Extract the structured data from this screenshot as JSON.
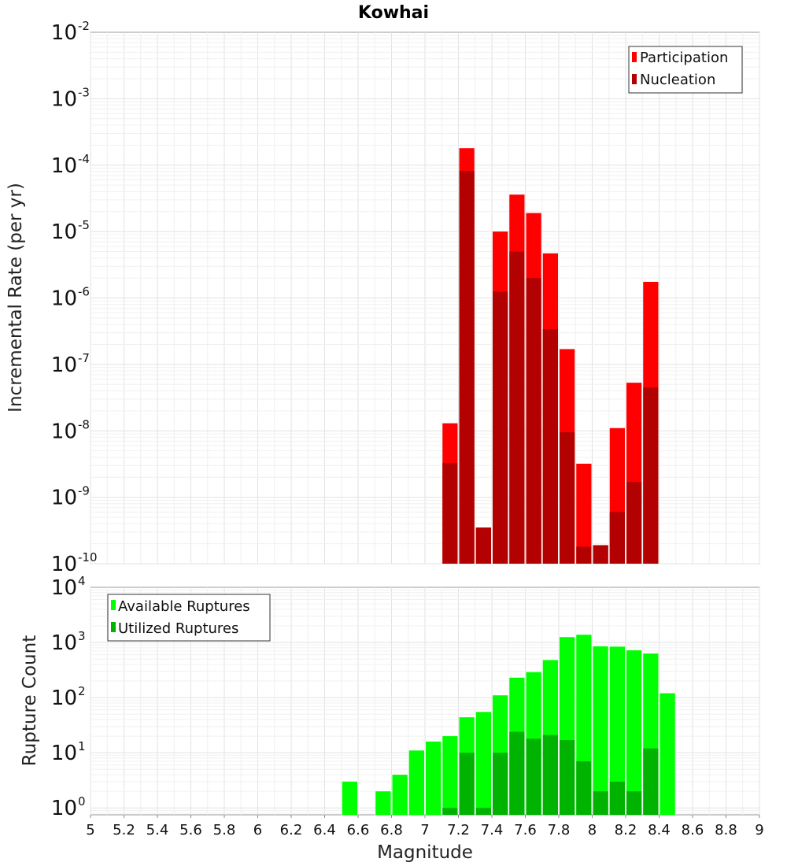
{
  "chart_data": [
    {
      "type": "bar",
      "title": "Kowhai",
      "xlabel": "Magnitude",
      "ylabel": "Incremental Rate (per yr)",
      "yscale": "log",
      "ylim": [
        1e-10,
        0.01
      ],
      "xlim": [
        5,
        9
      ],
      "ytick_bases": [
        "10",
        "10",
        "10",
        "10",
        "10",
        "10",
        "10",
        "10",
        "10"
      ],
      "ytick_exponents": [
        "-10",
        "-9",
        "-8",
        "-7",
        "-6",
        "-5",
        "-4",
        "-3",
        "-2"
      ],
      "bin_width": 0.1,
      "grid": true,
      "legend_position": "top-right",
      "series": [
        {
          "name": "Participation",
          "color": "#ff0000",
          "points": [
            [
              7.15,
              1.3e-08
            ],
            [
              7.25,
              0.00018
            ],
            [
              7.35,
              3.5e-10
            ],
            [
              7.45,
              1e-05
            ],
            [
              7.55,
              3.6e-05
            ],
            [
              7.65,
              1.9e-05
            ],
            [
              7.75,
              4.7e-06
            ],
            [
              7.85,
              1.7e-07
            ],
            [
              7.95,
              3.2e-09
            ],
            [
              8.05,
              1.9e-10
            ],
            [
              8.15,
              1.1e-08
            ],
            [
              8.25,
              5.3e-08
            ],
            [
              8.35,
              1.75e-06
            ]
          ]
        },
        {
          "name": "Nucleation",
          "color": "#b30000",
          "points": [
            [
              7.15,
              3.3e-09
            ],
            [
              7.25,
              8.2e-05
            ],
            [
              7.35,
              3.5e-10
            ],
            [
              7.45,
              1.25e-06
            ],
            [
              7.55,
              5e-06
            ],
            [
              7.65,
              2e-06
            ],
            [
              7.75,
              3.4e-07
            ],
            [
              7.85,
              9.5e-09
            ],
            [
              7.95,
              1.8e-10
            ],
            [
              8.05,
              1.9e-10
            ],
            [
              8.15,
              6e-10
            ],
            [
              8.25,
              1.7e-09
            ],
            [
              8.35,
              4.5e-08
            ]
          ]
        }
      ]
    },
    {
      "type": "bar",
      "xlabel": "Magnitude",
      "ylabel": "Rupture Count",
      "yscale": "log",
      "ylim": [
        0.75,
        10000.0
      ],
      "xlim": [
        5,
        9
      ],
      "ytick_bases": [
        "10",
        "10",
        "10",
        "10",
        "10"
      ],
      "ytick_exponents": [
        "0",
        "1",
        "2",
        "3",
        "4"
      ],
      "xticks": [
        "5",
        "5.2",
        "5.4",
        "5.6",
        "5.8",
        "6",
        "6.2",
        "6.4",
        "6.6",
        "6.8",
        "7",
        "7.2",
        "7.4",
        "7.6",
        "7.8",
        "8",
        "8.2",
        "8.4",
        "8.6",
        "8.8",
        "9"
      ],
      "bin_width": 0.1,
      "grid": true,
      "legend_position": "top-left",
      "series": [
        {
          "name": "Available Ruptures",
          "color": "#00ff00",
          "points": [
            [
              6.55,
              3
            ],
            [
              6.75,
              2
            ],
            [
              6.85,
              4
            ],
            [
              6.95,
              11
            ],
            [
              7.05,
              16
            ],
            [
              7.15,
              20
            ],
            [
              7.25,
              44
            ],
            [
              7.35,
              55
            ],
            [
              7.45,
              110
            ],
            [
              7.55,
              230
            ],
            [
              7.65,
              290
            ],
            [
              7.75,
              480
            ],
            [
              7.85,
              1250
            ],
            [
              7.95,
              1380
            ],
            [
              8.05,
              850
            ],
            [
              8.15,
              840
            ],
            [
              8.25,
              720
            ],
            [
              8.35,
              630
            ],
            [
              8.45,
              120
            ]
          ]
        },
        {
          "name": "Utilized Ruptures",
          "color": "#00b300",
          "points": [
            [
              7.15,
              1
            ],
            [
              7.25,
              10
            ],
            [
              7.35,
              1
            ],
            [
              7.45,
              10
            ],
            [
              7.55,
              24
            ],
            [
              7.65,
              18
            ],
            [
              7.75,
              21
            ],
            [
              7.85,
              17
            ],
            [
              7.95,
              7
            ],
            [
              8.05,
              2
            ],
            [
              8.15,
              3
            ],
            [
              8.25,
              2
            ],
            [
              8.35,
              12
            ]
          ]
        }
      ]
    }
  ]
}
